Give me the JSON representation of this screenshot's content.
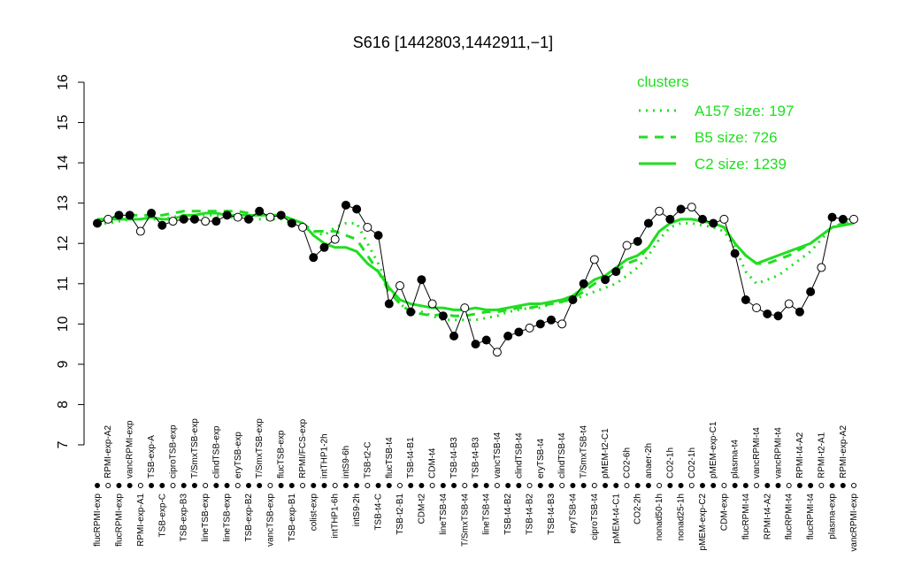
{
  "chart_data": {
    "type": "line",
    "title": "S616 [1442803,1442911,−1]",
    "ylim": [
      7,
      16
    ],
    "yticks": [
      7,
      8,
      9,
      10,
      11,
      12,
      13,
      14,
      15,
      16
    ],
    "legend_title": "clusters",
    "legend": "top-right",
    "categories": [
      "flucRPMI-exp",
      "RPMI-exp-A2",
      "flucRPMI-exp",
      "vancRPMI-exp",
      "RPMI-exp-A1",
      "TSB-exp-A",
      "TSB-exp-C",
      "ciproTSB-exp",
      "TSB-exp-B3",
      "T/SmxTSB-exp",
      "lineTSB-exp",
      "clindTSB-exp",
      "lineTSB-exp",
      "eryTSB-exp",
      "TSB-exp-B2",
      "T/SmxTSB-exp",
      "vancTSB-exp",
      "flucTSB-exp",
      "TSB-exp-B1",
      "RPMI/FCS-exp",
      "colist-exp",
      "intTHP1-2h",
      "intTHP1-6h",
      "intS9-6h",
      "intS9-2h",
      "TSB-t2-C",
      "TSB-t4-C",
      "flucTSB-t4",
      "TSB-t2-B1",
      "TSB-t4-B1",
      "CDM-t2",
      "CDM-t4",
      "lineTSB-t4",
      "TSB-t4-B3",
      "T/SmxTSB-t4",
      "TSB-t4-B3",
      "lineTSB-t4",
      "vancTSB-t4",
      "TSB-t4-B2",
      "clindTSB-t4",
      "TSB-t4-B2",
      "eryTSB-t4",
      "TSB-t4-B3",
      "clindTSB-t4",
      "eryTSB-t4",
      "T/SmxTSB-t4",
      "ciproTSB-t4",
      "pMEM-t2-C1",
      "pMEM-t4-C1",
      "CO2-6h",
      "CO2-2h",
      "anaer-2h",
      "nonad50-1h",
      "CO2-1h",
      "nonad25-1h",
      "CO2-1h",
      "pMEM-exp-C2",
      "pMEM-exp-C1",
      "CDM-exp",
      "plasma-t4",
      "flucRPMI-t4",
      "vancRPMI-t4",
      "RPMI-t4-A2",
      "vancRPMI-t4",
      "flucRPMI-t4",
      "RPMI-t4-A2",
      "flucRPMI-t4",
      "RPMI-t2-A1",
      "plasma-exp",
      "RPMI-exp-A2",
      "vancRPMI-exp"
    ],
    "values": [
      12.5,
      12.6,
      12.7,
      12.7,
      12.3,
      12.75,
      12.45,
      12.55,
      12.6,
      12.6,
      12.55,
      12.55,
      12.7,
      12.65,
      12.6,
      12.8,
      12.65,
      12.7,
      12.5,
      12.4,
      11.65,
      11.9,
      12.1,
      12.95,
      12.85,
      12.4,
      12.2,
      10.5,
      10.95,
      10.3,
      11.1,
      10.5,
      10.2,
      9.7,
      10.4,
      9.5,
      9.6,
      9.3,
      9.7,
      9.8,
      9.9,
      10.0,
      10.1,
      10.0,
      10.6,
      11.0,
      11.6,
      11.1,
      11.3,
      11.95,
      12.05,
      12.5,
      12.8,
      12.6,
      12.85,
      12.9,
      12.6,
      12.5,
      12.6,
      11.75,
      10.6,
      10.4,
      10.25,
      10.2,
      10.5,
      10.3,
      10.8,
      11.4,
      12.65,
      12.6,
      12.6
    ],
    "color": "#000000",
    "series": [
      {
        "name": "A157 size: 197",
        "color": "#22dd22",
        "dash": "dotted",
        "values": [
          12.5,
          12.5,
          12.55,
          12.6,
          12.6,
          12.6,
          12.6,
          12.65,
          12.7,
          12.7,
          12.7,
          12.7,
          12.65,
          12.65,
          12.6,
          12.6,
          12.6,
          12.6,
          12.5,
          12.4,
          12.3,
          12.2,
          12.4,
          12.5,
          12.5,
          12.0,
          11.5,
          10.9,
          10.5,
          10.3,
          10.3,
          10.2,
          10.1,
          10.1,
          10.1,
          10.1,
          10.15,
          10.2,
          10.3,
          10.35,
          10.4,
          10.4,
          10.5,
          10.55,
          10.6,
          10.7,
          10.8,
          10.9,
          11.0,
          11.2,
          11.4,
          11.7,
          12.1,
          12.4,
          12.5,
          12.5,
          12.45,
          12.4,
          12.3,
          11.9,
          11.3,
          11.0,
          11.1,
          11.2,
          11.4,
          11.6,
          11.8,
          12.1,
          12.4,
          12.5,
          12.55
        ]
      },
      {
        "name": "B5 size: 726",
        "color": "#22dd22",
        "dash": "dashed",
        "values": [
          12.6,
          12.6,
          12.7,
          12.7,
          12.7,
          12.7,
          12.7,
          12.75,
          12.8,
          12.8,
          12.8,
          12.8,
          12.8,
          12.8,
          12.75,
          12.75,
          12.7,
          12.7,
          12.6,
          12.5,
          12.3,
          12.3,
          12.3,
          12.2,
          12.1,
          11.7,
          11.3,
          10.8,
          10.5,
          10.3,
          10.25,
          10.2,
          10.25,
          10.2,
          10.2,
          10.25,
          10.3,
          10.3,
          10.35,
          10.4,
          10.4,
          10.45,
          10.5,
          10.55,
          10.65,
          10.8,
          11.0,
          11.1,
          11.3,
          11.5,
          11.6,
          11.9,
          12.3,
          12.5,
          12.6,
          12.6,
          12.55,
          12.5,
          12.4,
          12.0,
          11.7,
          11.5,
          11.5,
          11.6,
          11.7,
          11.85,
          12.0,
          12.2,
          12.4,
          12.5,
          12.5
        ]
      },
      {
        "name": "C2 size: 1239",
        "color": "#22dd22",
        "dash": "solid",
        "values": [
          12.55,
          12.6,
          12.6,
          12.6,
          12.6,
          12.65,
          12.6,
          12.6,
          12.7,
          12.7,
          12.75,
          12.75,
          12.7,
          12.7,
          12.7,
          12.7,
          12.7,
          12.7,
          12.6,
          12.5,
          12.2,
          12.0,
          11.9,
          11.9,
          11.8,
          11.5,
          11.3,
          10.9,
          10.6,
          10.5,
          10.45,
          10.4,
          10.4,
          10.35,
          10.35,
          10.4,
          10.35,
          10.35,
          10.4,
          10.45,
          10.5,
          10.5,
          10.55,
          10.6,
          10.7,
          10.9,
          11.1,
          11.2,
          11.4,
          11.6,
          11.7,
          11.9,
          12.3,
          12.5,
          12.6,
          12.6,
          12.55,
          12.5,
          12.4,
          12.0,
          11.7,
          11.5,
          11.6,
          11.7,
          11.8,
          11.9,
          12.0,
          12.2,
          12.4,
          12.45,
          12.5
        ]
      }
    ]
  }
}
